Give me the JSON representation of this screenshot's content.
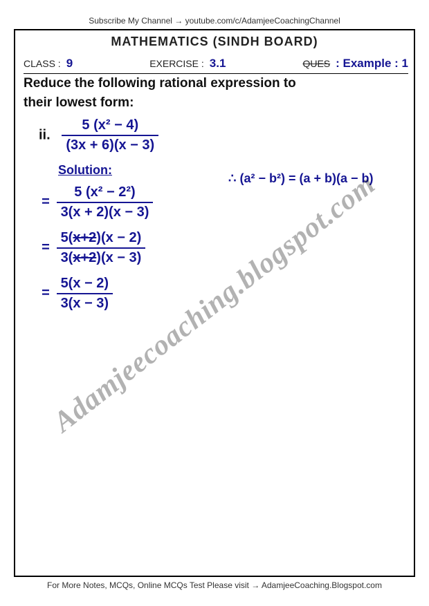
{
  "header": {
    "subscribe": "Subscribe My Channel → youtube.com/c/AdamjeeCoachingChannel",
    "title": "MATHEMATICS (SINDH BOARD)"
  },
  "meta": {
    "class_lbl": "CLASS :",
    "class_val": "9",
    "exercise_lbl": "EXERCISE :",
    "exercise_val": "3.1",
    "ques_lbl": "QUES",
    "ques_val": ": Example : 1"
  },
  "prompt": {
    "l1": "Reduce the following rational expression to",
    "l2": "their lowest form:"
  },
  "problem": {
    "tag": "ii.",
    "num": "5 (x² − 4)",
    "den": "(3x + 6)(x − 3)"
  },
  "solution_label": "Solution:",
  "steps": {
    "s1": {
      "num": "5 (x² − 2²)",
      "den": "3(x + 2)(x − 3)"
    },
    "s2": {
      "num_a": "5(",
      "num_cancel": "x+2",
      "num_b": ")(x − 2)",
      "den_a": "3(",
      "den_cancel": "x+2",
      "den_b": ")(x − 3)"
    },
    "s3": {
      "num": "5(x − 2)",
      "den": "3(x − 3)"
    }
  },
  "identity": "∴  (a² − b²) = (a + b)(a − b)",
  "footer": "For More Notes, MCQs, Online MCQs Test Please visit → AdamjeeCoaching.Blogspot.com",
  "watermark": "Adamjeecoaching.blogspot.com",
  "colors": {
    "ink": "#151593",
    "black": "#111111",
    "wm": "rgba(0,0,0,0.30)"
  }
}
